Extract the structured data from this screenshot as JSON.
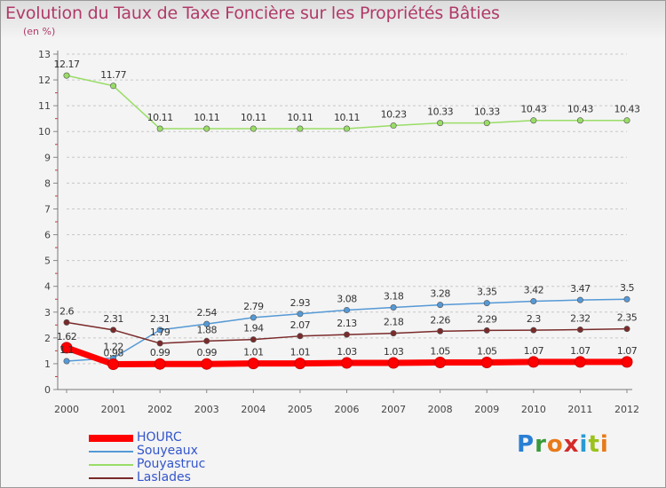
{
  "title": "Evolution du Taux de Taxe Foncière sur les Propriétés Bâties",
  "unit_label": "(en %)",
  "logo": {
    "letters": [
      "P",
      "r",
      "o",
      "x",
      "i",
      "t",
      "i"
    ],
    "colors": [
      "#2a7fd4",
      "#3a9a3a",
      "#e87a1a",
      "#d42a2a",
      "#2a9ad4",
      "#9ac21a",
      "#e87a1a"
    ]
  },
  "chart_data": {
    "type": "line",
    "title": "Evolution du Taux de Taxe Foncière sur les Propriétés Bâties",
    "xlabel": "",
    "ylabel": "(en %)",
    "ylim": [
      0,
      13
    ],
    "y_ticks": [
      "0",
      "1",
      "2",
      "3",
      "4",
      "5",
      "6",
      "7",
      "8",
      "9",
      "10",
      "11",
      "12",
      "13"
    ],
    "x": [
      "2000",
      "2001",
      "2002",
      "2003",
      "2004",
      "2005",
      "2006",
      "2007",
      "2008",
      "2009",
      "2010",
      "2011",
      "2012"
    ],
    "grid": "horizontal dashed",
    "legend_position": "bottom-left",
    "series": [
      {
        "name": "HOURC",
        "color": "#ff0000",
        "values": [
          1.62,
          0.98,
          0.99,
          0.99,
          1.01,
          1.01,
          1.03,
          1.03,
          1.05,
          1.05,
          1.07,
          1.07,
          1.07
        ],
        "labels": [
          "1.62",
          "0.98",
          "0.99",
          "0.99",
          "1.01",
          "1.01",
          "1.03",
          "1.03",
          "1.05",
          "1.05",
          "1.07",
          "1.07",
          "1.07"
        ]
      },
      {
        "name": "Souyeaux",
        "color": "#5599d6",
        "values": [
          1.1,
          1.22,
          2.31,
          2.54,
          2.79,
          2.93,
          3.08,
          3.18,
          3.28,
          3.35,
          3.42,
          3.47,
          3.5
        ],
        "labels": [
          "1.1",
          "1.22",
          "2.31",
          "2.54",
          "2.79",
          "2.93",
          "3.08",
          "3.18",
          "3.28",
          "3.35",
          "3.42",
          "3.47",
          "3.5"
        ]
      },
      {
        "name": "Pouyastruc",
        "color": "#99dd66",
        "values": [
          12.17,
          11.77,
          10.11,
          10.11,
          10.11,
          10.11,
          10.11,
          10.23,
          10.33,
          10.33,
          10.43,
          10.43,
          10.43
        ],
        "labels": [
          "12.17",
          "11.77",
          "10.11",
          "10.11",
          "10.11",
          "10.11",
          "10.11",
          "10.23",
          "10.33",
          "10.33",
          "10.43",
          "10.43",
          "10.43"
        ]
      },
      {
        "name": "Laslades",
        "color": "#7a2a2a",
        "values": [
          2.6,
          2.31,
          1.79,
          1.88,
          1.94,
          2.07,
          2.13,
          2.18,
          2.26,
          2.29,
          2.3,
          2.32,
          2.35
        ],
        "labels": [
          "2.6",
          "2.31",
          "1.79",
          "1.88",
          "1.94",
          "2.07",
          "2.13",
          "2.18",
          "2.26",
          "2.29",
          "2.3",
          "2.32",
          "2.35"
        ]
      }
    ]
  }
}
